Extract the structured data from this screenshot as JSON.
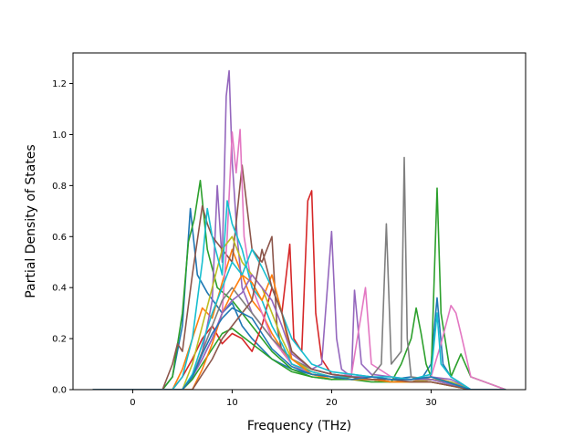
{
  "chart_data": {
    "type": "line",
    "xlabel": "Frequency (THz)",
    "ylabel": "Partial Density of States",
    "xlim": [
      -6.0,
      39.5
    ],
    "ylim": [
      0.0,
      1.32
    ],
    "xticks": [
      0,
      10,
      20,
      30
    ],
    "yticks": [
      0.0,
      0.2,
      0.4,
      0.6,
      0.8,
      1.0,
      1.2
    ],
    "xtick_labels": [
      "0",
      "10",
      "20",
      "30"
    ],
    "ytick_labels": [
      "0.0",
      "0.2",
      "0.4",
      "0.6",
      "0.8",
      "1.0",
      "1.2"
    ],
    "grid": false,
    "colors": [
      "#1f77b4",
      "#ff7f0e",
      "#2ca02c",
      "#d62728",
      "#9467bd",
      "#8c564b",
      "#e377c2",
      "#7f7f7f",
      "#bcbd22",
      "#17becf"
    ],
    "series": [
      {
        "color": "#1f77b4",
        "x": [
          -4,
          3,
          4,
          5,
          5.8,
          6.5,
          7.5,
          9,
          10,
          11,
          12,
          14,
          16,
          18,
          20,
          22,
          24,
          26,
          28,
          29,
          30,
          30.6,
          31.2,
          32,
          34,
          37.5
        ],
        "y": [
          0,
          0,
          0.05,
          0.25,
          0.71,
          0.45,
          0.38,
          0.3,
          0.34,
          0.25,
          0.2,
          0.12,
          0.08,
          0.06,
          0.05,
          0.06,
          0.05,
          0.04,
          0.05,
          0.04,
          0.1,
          0.36,
          0.1,
          0.05,
          0,
          0
        ]
      },
      {
        "color": "#ff7f0e",
        "x": [
          -4,
          4,
          5,
          6,
          7,
          8,
          9,
          10,
          11,
          12,
          13,
          14,
          16,
          18,
          20,
          22,
          24,
          26,
          28,
          30,
          32,
          34,
          37.5
        ],
        "y": [
          0,
          0,
          0.08,
          0.2,
          0.32,
          0.28,
          0.42,
          0.55,
          0.45,
          0.35,
          0.3,
          0.22,
          0.1,
          0.06,
          0.04,
          0.05,
          0.04,
          0.03,
          0.03,
          0.05,
          0.03,
          0,
          0
        ]
      },
      {
        "color": "#2ca02c",
        "x": [
          -4,
          3,
          4,
          5,
          5.6,
          6.2,
          6.8,
          7.5,
          8.5,
          10,
          11,
          12,
          14,
          16,
          18,
          20,
          22,
          24,
          26,
          27,
          28,
          28.5,
          29,
          29.5,
          30,
          30.6,
          31,
          32,
          33,
          34,
          37.5
        ],
        "y": [
          0,
          0,
          0.05,
          0.3,
          0.58,
          0.67,
          0.82,
          0.55,
          0.4,
          0.35,
          0.3,
          0.25,
          0.15,
          0.08,
          0.05,
          0.04,
          0.05,
          0.04,
          0.03,
          0.1,
          0.2,
          0.32,
          0.22,
          0.1,
          0.05,
          0.79,
          0.3,
          0.05,
          0.14,
          0.05,
          0
        ]
      },
      {
        "color": "#d62728",
        "x": [
          -4,
          4,
          5,
          6,
          7,
          8,
          9,
          10,
          11,
          12,
          13,
          14,
          15,
          15.8,
          16.2,
          17,
          17.6,
          18,
          18.4,
          19,
          20,
          22,
          24,
          26,
          28,
          30,
          32,
          34,
          37.5
        ],
        "y": [
          0,
          0,
          0.05,
          0.12,
          0.2,
          0.25,
          0.18,
          0.22,
          0.2,
          0.15,
          0.25,
          0.4,
          0.3,
          0.57,
          0.2,
          0.15,
          0.74,
          0.78,
          0.3,
          0.12,
          0.06,
          0.05,
          0.04,
          0.03,
          0.03,
          0.04,
          0.03,
          0,
          0
        ]
      },
      {
        "color": "#9467bd",
        "x": [
          -4,
          5,
          6,
          7,
          8,
          8.5,
          9,
          9.4,
          9.7,
          10,
          10.5,
          11,
          12,
          14,
          16,
          18,
          19,
          20,
          20.5,
          21,
          22,
          22.3,
          23,
          24,
          26,
          28,
          30,
          32,
          34,
          37.5
        ],
        "y": [
          0,
          0,
          0.05,
          0.15,
          0.35,
          0.8,
          0.5,
          1.15,
          1.25,
          0.9,
          0.6,
          0.4,
          0.3,
          0.2,
          0.12,
          0.08,
          0.1,
          0.62,
          0.2,
          0.08,
          0.05,
          0.39,
          0.1,
          0.06,
          0.05,
          0.04,
          0.05,
          0.04,
          0,
          0
        ]
      },
      {
        "color": "#8c564b",
        "x": [
          -4,
          3,
          4,
          4.5,
          5,
          6,
          7,
          7.5,
          8,
          9,
          10,
          11,
          12,
          13,
          14,
          14.5,
          15,
          16,
          18,
          20,
          22,
          24,
          26,
          28,
          30,
          32,
          34,
          37.5
        ],
        "y": [
          0,
          0,
          0.1,
          0.18,
          0.15,
          0.45,
          0.72,
          0.65,
          0.6,
          0.55,
          0.5,
          0.88,
          0.55,
          0.5,
          0.6,
          0.25,
          0.15,
          0.1,
          0.06,
          0.05,
          0.04,
          0.04,
          0.03,
          0.03,
          0.04,
          0.03,
          0,
          0
        ]
      },
      {
        "color": "#e377c2",
        "x": [
          -4,
          5,
          6,
          7,
          8,
          9,
          9.5,
          10,
          10.4,
          10.8,
          11.2,
          12,
          13,
          14,
          16,
          18,
          20,
          22,
          23,
          23.4,
          24,
          26,
          28,
          30,
          31,
          32,
          32.5,
          33,
          34,
          37.5
        ],
        "y": [
          0,
          0,
          0.05,
          0.12,
          0.2,
          0.3,
          0.6,
          1.01,
          0.85,
          1.02,
          0.6,
          0.4,
          0.3,
          0.2,
          0.1,
          0.06,
          0.05,
          0.06,
          0.3,
          0.4,
          0.1,
          0.05,
          0.04,
          0.05,
          0.18,
          0.33,
          0.3,
          0.22,
          0.05,
          0
        ]
      },
      {
        "color": "#7f7f7f",
        "x": [
          -4,
          5,
          6,
          7,
          8,
          9,
          10,
          11,
          12,
          14,
          16,
          18,
          20,
          22,
          24,
          25,
          25.5,
          26,
          27,
          27.3,
          27.6,
          28,
          30,
          32,
          34,
          37.5
        ],
        "y": [
          0,
          0,
          0.05,
          0.15,
          0.25,
          0.35,
          0.4,
          0.35,
          0.3,
          0.2,
          0.12,
          0.08,
          0.06,
          0.05,
          0.05,
          0.1,
          0.65,
          0.1,
          0.15,
          0.91,
          0.2,
          0.05,
          0.04,
          0.03,
          0,
          0
        ]
      },
      {
        "color": "#bcbd22",
        "x": [
          -4,
          5,
          6,
          7,
          8,
          9,
          10,
          11,
          12,
          13,
          14,
          15,
          16,
          18,
          20,
          22,
          24,
          26,
          28,
          30,
          32,
          34,
          37.5
        ],
        "y": [
          0,
          0,
          0.1,
          0.25,
          0.4,
          0.55,
          0.6,
          0.5,
          0.45,
          0.4,
          0.3,
          0.2,
          0.12,
          0.07,
          0.05,
          0.04,
          0.04,
          0.03,
          0.03,
          0.04,
          0.03,
          0,
          0
        ]
      },
      {
        "color": "#17becf",
        "x": [
          -4,
          4,
          5,
          6,
          7,
          7.5,
          8,
          9,
          9.5,
          10,
          11,
          12,
          13,
          14,
          15,
          16,
          18,
          20,
          22,
          24,
          26,
          28,
          30,
          30.6,
          31,
          32,
          34,
          37.5
        ],
        "y": [
          0,
          0,
          0.05,
          0.2,
          0.5,
          0.71,
          0.6,
          0.45,
          0.74,
          0.65,
          0.55,
          0.4,
          0.35,
          0.25,
          0.18,
          0.1,
          0.07,
          0.05,
          0.05,
          0.05,
          0.04,
          0.04,
          0.06,
          0.3,
          0.1,
          0.05,
          0,
          0
        ]
      },
      {
        "color": "#2ca02c",
        "x": [
          -4,
          5,
          6,
          7,
          8,
          9,
          10,
          12,
          14,
          16,
          18,
          20,
          22,
          24,
          26,
          28,
          30,
          34,
          37.5
        ],
        "y": [
          0,
          0,
          0.04,
          0.1,
          0.16,
          0.22,
          0.24,
          0.18,
          0.12,
          0.07,
          0.05,
          0.04,
          0.04,
          0.03,
          0.03,
          0.03,
          0.03,
          0,
          0
        ]
      },
      {
        "color": "#ff7f0e",
        "x": [
          -4,
          6,
          7,
          8,
          9,
          10,
          11,
          12,
          13,
          14,
          15,
          16,
          18,
          20,
          22,
          24,
          26,
          28,
          30,
          34,
          37.5
        ],
        "y": [
          0,
          0,
          0.08,
          0.18,
          0.3,
          0.38,
          0.45,
          0.42,
          0.35,
          0.45,
          0.3,
          0.12,
          0.06,
          0.05,
          0.04,
          0.04,
          0.03,
          0.03,
          0.03,
          0,
          0
        ]
      },
      {
        "color": "#9467bd",
        "x": [
          -4,
          5,
          6,
          7,
          8,
          9,
          10,
          11,
          12,
          13,
          14,
          15,
          16,
          18,
          20,
          22,
          24,
          26,
          28,
          30,
          34,
          37.5
        ],
        "y": [
          0,
          0,
          0.05,
          0.12,
          0.2,
          0.3,
          0.35,
          0.38,
          0.45,
          0.4,
          0.35,
          0.25,
          0.14,
          0.08,
          0.06,
          0.05,
          0.05,
          0.04,
          0.04,
          0.04,
          0,
          0
        ]
      },
      {
        "color": "#17becf",
        "x": [
          -4,
          5,
          6,
          7,
          8,
          9,
          10,
          11,
          12,
          13,
          14,
          16,
          18,
          20,
          22,
          24,
          26,
          28,
          30,
          34,
          37.5
        ],
        "y": [
          0,
          0,
          0.06,
          0.18,
          0.3,
          0.4,
          0.5,
          0.45,
          0.55,
          0.48,
          0.4,
          0.2,
          0.1,
          0.07,
          0.06,
          0.05,
          0.05,
          0.04,
          0.05,
          0,
          0
        ]
      },
      {
        "color": "#8c564b",
        "x": [
          -4,
          6,
          7,
          8,
          9,
          10,
          11,
          12,
          13,
          14,
          15,
          16,
          18,
          20,
          22,
          24,
          26,
          28,
          30,
          34,
          37.5
        ],
        "y": [
          0,
          0,
          0.06,
          0.12,
          0.2,
          0.25,
          0.3,
          0.35,
          0.55,
          0.4,
          0.3,
          0.15,
          0.08,
          0.06,
          0.05,
          0.04,
          0.04,
          0.03,
          0.03,
          0,
          0
        ]
      },
      {
        "color": "#1f77b4",
        "x": [
          -4,
          5,
          6,
          7,
          8,
          9,
          10,
          11,
          12,
          13,
          14,
          16,
          18,
          20,
          22,
          24,
          26,
          28,
          30,
          34,
          37.5
        ],
        "y": [
          0,
          0,
          0.05,
          0.14,
          0.22,
          0.28,
          0.32,
          0.3,
          0.28,
          0.22,
          0.16,
          0.09,
          0.06,
          0.05,
          0.04,
          0.05,
          0.04,
          0.04,
          0.05,
          0,
          0
        ]
      }
    ]
  }
}
